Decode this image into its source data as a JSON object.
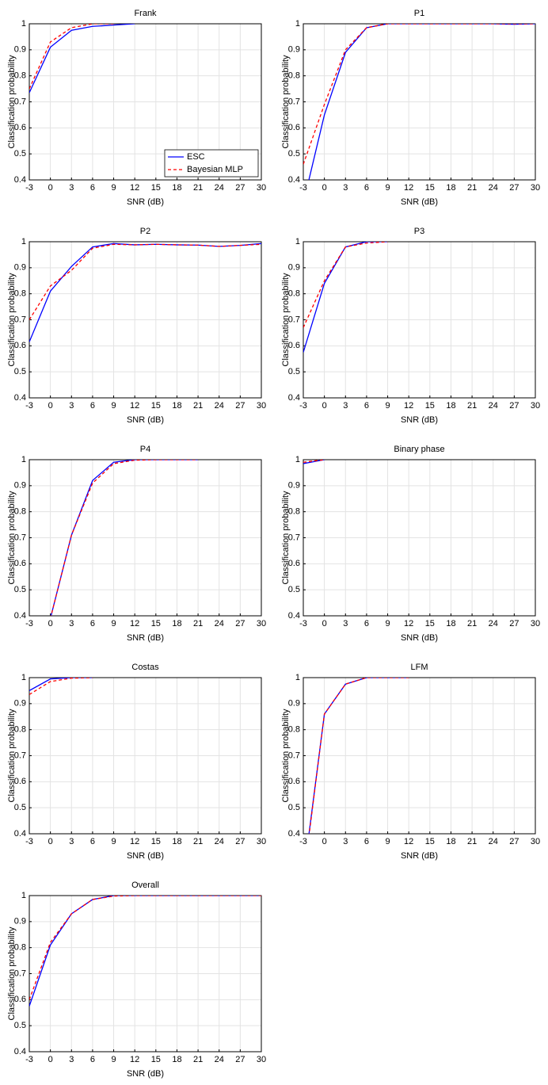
{
  "chart_data": [
    {
      "type": "line",
      "title": "Frank",
      "x_label": "SNR (dB)",
      "y_label": "Classification probability",
      "x": [
        -3,
        0,
        3,
        6,
        9,
        12,
        15,
        18,
        21,
        24,
        27,
        30
      ],
      "xlim": [
        -3,
        30
      ],
      "xticks": [
        -3,
        0,
        3,
        6,
        9,
        12,
        15,
        18,
        21,
        24,
        27,
        30
      ],
      "ylim": [
        0.4,
        1
      ],
      "yticks": [
        0.4,
        0.5,
        0.6,
        0.7,
        0.8,
        0.9,
        1
      ],
      "grid": true,
      "legend": "lower right",
      "series": [
        {
          "name": "ESC",
          "color": "#0000ff",
          "linestyle": "solid",
          "values": [
            0.735,
            0.91,
            0.975,
            0.99,
            0.995,
            1.0,
            null,
            null,
            null,
            null,
            null,
            null
          ]
        },
        {
          "name": "Bayesian MLP",
          "color": "#ff0000",
          "linestyle": "dashed",
          "values": [
            0.75,
            0.93,
            0.985,
            1.0,
            1.0,
            null,
            null,
            null,
            null,
            null,
            null,
            null
          ]
        }
      ]
    },
    {
      "type": "line",
      "title": "P1",
      "x_label": "SNR (dB)",
      "y_label": "Classification probability",
      "x": [
        -3,
        0,
        3,
        6,
        9,
        12,
        15,
        18,
        21,
        24,
        27,
        30
      ],
      "xlim": [
        -3,
        30
      ],
      "xticks": [
        -3,
        0,
        3,
        6,
        9,
        12,
        15,
        18,
        21,
        24,
        27,
        30
      ],
      "ylim": [
        0.4,
        1
      ],
      "yticks": [
        0.4,
        0.5,
        0.6,
        0.7,
        0.8,
        0.9,
        1
      ],
      "grid": true,
      "series": [
        {
          "color": "#0000ff",
          "linestyle": "solid",
          "values": [
            0.31,
            0.65,
            0.89,
            0.985,
            1.0,
            1.0,
            1.0,
            1.0,
            1.0,
            1.0,
            0.998,
            1.0
          ]
        },
        {
          "color": "#ff0000",
          "linestyle": "dashed",
          "values": [
            0.46,
            0.69,
            0.9,
            0.985,
            1.0,
            1.0,
            1.0,
            1.0,
            1.0,
            1.0,
            1.0,
            1.0
          ]
        }
      ]
    },
    {
      "type": "line",
      "title": "P2",
      "x_label": "SNR (dB)",
      "y_label": "Classification probability",
      "x": [
        -3,
        0,
        3,
        6,
        9,
        12,
        15,
        18,
        21,
        24,
        27,
        30
      ],
      "xlim": [
        -3,
        30
      ],
      "xticks": [
        -3,
        0,
        3,
        6,
        9,
        12,
        15,
        18,
        21,
        24,
        27,
        30
      ],
      "ylim": [
        0.4,
        1
      ],
      "yticks": [
        0.4,
        0.5,
        0.6,
        0.7,
        0.8,
        0.9,
        1
      ],
      "grid": true,
      "series": [
        {
          "color": "#0000ff",
          "linestyle": "solid",
          "values": [
            0.615,
            0.81,
            0.905,
            0.98,
            0.993,
            0.988,
            0.99,
            0.988,
            0.987,
            0.982,
            0.986,
            0.993
          ]
        },
        {
          "color": "#ff0000",
          "linestyle": "dashed",
          "values": [
            0.7,
            0.83,
            0.89,
            0.975,
            0.99,
            0.988,
            0.99,
            0.988,
            0.987,
            0.982,
            0.986,
            0.99
          ]
        }
      ]
    },
    {
      "type": "line",
      "title": "P3",
      "x_label": "SNR (dB)",
      "y_label": "Classification probability",
      "x": [
        -3,
        0,
        3,
        6,
        9,
        12,
        15,
        18,
        21,
        24,
        27,
        30
      ],
      "xlim": [
        -3,
        30
      ],
      "xticks": [
        -3,
        0,
        3,
        6,
        9,
        12,
        15,
        18,
        21,
        24,
        27,
        30
      ],
      "ylim": [
        0.4,
        1
      ],
      "yticks": [
        0.4,
        0.5,
        0.6,
        0.7,
        0.8,
        0.9,
        1
      ],
      "grid": true,
      "series": [
        {
          "color": "#0000ff",
          "linestyle": "solid",
          "values": [
            0.575,
            0.84,
            0.98,
            1.0,
            1.0,
            null,
            null,
            null,
            null,
            null,
            null,
            null
          ]
        },
        {
          "color": "#ff0000",
          "linestyle": "dashed",
          "values": [
            0.67,
            0.85,
            0.98,
            0.995,
            1.0,
            null,
            null,
            null,
            null,
            null,
            null,
            null
          ]
        }
      ]
    },
    {
      "type": "line",
      "title": "P4",
      "x_label": "SNR (dB)",
      "y_label": "Classification probability",
      "x": [
        -3,
        0,
        3,
        6,
        9,
        12,
        15,
        18,
        21,
        24,
        27,
        30
      ],
      "xlim": [
        -3,
        30
      ],
      "xticks": [
        -3,
        0,
        3,
        6,
        9,
        12,
        15,
        18,
        21,
        24,
        27,
        30
      ],
      "ylim": [
        0.4,
        1
      ],
      "yticks": [
        0.4,
        0.5,
        0.6,
        0.7,
        0.8,
        0.9,
        1
      ],
      "grid": true,
      "series": [
        {
          "color": "#0000ff",
          "linestyle": "solid",
          "values": [
            null,
            0.39,
            0.71,
            0.92,
            0.99,
            1.0,
            1.0,
            1.0,
            1.0,
            null,
            null,
            null
          ]
        },
        {
          "color": "#ff0000",
          "linestyle": "dashed",
          "values": [
            null,
            0.39,
            0.71,
            0.91,
            0.985,
            0.998,
            1.0,
            1.0,
            1.0,
            null,
            null,
            null
          ]
        }
      ]
    },
    {
      "type": "line",
      "title": "Binary phase",
      "x_label": "SNR (dB)",
      "y_label": "Classification probability",
      "x": [
        -3,
        0,
        3,
        6,
        9,
        12,
        15,
        18,
        21,
        24,
        27,
        30
      ],
      "xlim": [
        -3,
        30
      ],
      "xticks": [
        -3,
        0,
        3,
        6,
        9,
        12,
        15,
        18,
        21,
        24,
        27,
        30
      ],
      "ylim": [
        0.4,
        1
      ],
      "yticks": [
        0.4,
        0.5,
        0.6,
        0.7,
        0.8,
        0.9,
        1
      ],
      "grid": true,
      "series": [
        {
          "color": "#0000ff",
          "linestyle": "solid",
          "values": [
            0.985,
            1.0,
            null,
            null,
            null,
            null,
            null,
            null,
            null,
            null,
            null,
            null
          ]
        },
        {
          "color": "#ff0000",
          "linestyle": "dashed",
          "values": [
            0.99,
            1.0,
            null,
            null,
            null,
            null,
            null,
            null,
            null,
            null,
            null,
            null
          ]
        }
      ]
    },
    {
      "type": "line",
      "title": "Costas",
      "x_label": "SNR (dB)",
      "y_label": "Classification probability",
      "x": [
        -3,
        0,
        3,
        6,
        9,
        12,
        15,
        18,
        21,
        24,
        27,
        30
      ],
      "xlim": [
        -3,
        30
      ],
      "xticks": [
        -3,
        0,
        3,
        6,
        9,
        12,
        15,
        18,
        21,
        24,
        27,
        30
      ],
      "ylim": [
        0.4,
        1
      ],
      "yticks": [
        0.4,
        0.5,
        0.6,
        0.7,
        0.8,
        0.9,
        1
      ],
      "grid": true,
      "series": [
        {
          "color": "#0000ff",
          "linestyle": "solid",
          "values": [
            0.95,
            0.995,
            1.0,
            1.0,
            null,
            null,
            null,
            null,
            null,
            null,
            null,
            null
          ]
        },
        {
          "color": "#ff0000",
          "linestyle": "dashed",
          "values": [
            0.935,
            0.985,
            0.998,
            1.0,
            null,
            null,
            null,
            null,
            null,
            null,
            null,
            null
          ]
        }
      ]
    },
    {
      "type": "line",
      "title": "LFM",
      "x_label": "SNR (dB)",
      "y_label": "Classification probability",
      "x": [
        -3,
        0,
        3,
        6,
        9,
        12,
        15,
        18,
        21,
        24,
        27,
        30
      ],
      "xlim": [
        -3,
        30
      ],
      "xticks": [
        -3,
        0,
        3,
        6,
        9,
        12,
        15,
        18,
        21,
        24,
        27,
        30
      ],
      "ylim": [
        0.4,
        1
      ],
      "yticks": [
        0.4,
        0.5,
        0.6,
        0.7,
        0.8,
        0.9,
        1
      ],
      "grid": true,
      "series": [
        {
          "color": "#0000ff",
          "linestyle": "solid",
          "values": [
            0.23,
            0.86,
            0.975,
            1.0,
            1.0,
            1.0,
            null,
            null,
            null,
            null,
            null,
            null
          ]
        },
        {
          "color": "#ff0000",
          "linestyle": "dashed",
          "values": [
            0.22,
            0.86,
            0.975,
            1.0,
            1.0,
            1.0,
            null,
            null,
            null,
            null,
            null,
            null
          ]
        }
      ]
    },
    {
      "type": "line",
      "title": "Overall",
      "x_label": "SNR (dB)",
      "y_label": "Classification probability",
      "x": [
        -3,
        0,
        3,
        6,
        9,
        12,
        15,
        18,
        21,
        24,
        27,
        30
      ],
      "xlim": [
        -3,
        30
      ],
      "xticks": [
        -3,
        0,
        3,
        6,
        9,
        12,
        15,
        18,
        21,
        24,
        27,
        30
      ],
      "ylim": [
        0.4,
        1
      ],
      "yticks": [
        0.4,
        0.5,
        0.6,
        0.7,
        0.8,
        0.9,
        1
      ],
      "grid": true,
      "series": [
        {
          "color": "#0000ff",
          "linestyle": "solid",
          "values": [
            0.575,
            0.81,
            0.93,
            0.985,
            1.0,
            1.0,
            1.0,
            1.0,
            1.0,
            1.0,
            1.0,
            1.0
          ]
        },
        {
          "color": "#ff0000",
          "linestyle": "dashed",
          "values": [
            0.6,
            0.82,
            0.93,
            0.985,
            0.998,
            1.0,
            1.0,
            1.0,
            1.0,
            1.0,
            1.0,
            1.0
          ]
        }
      ]
    }
  ]
}
